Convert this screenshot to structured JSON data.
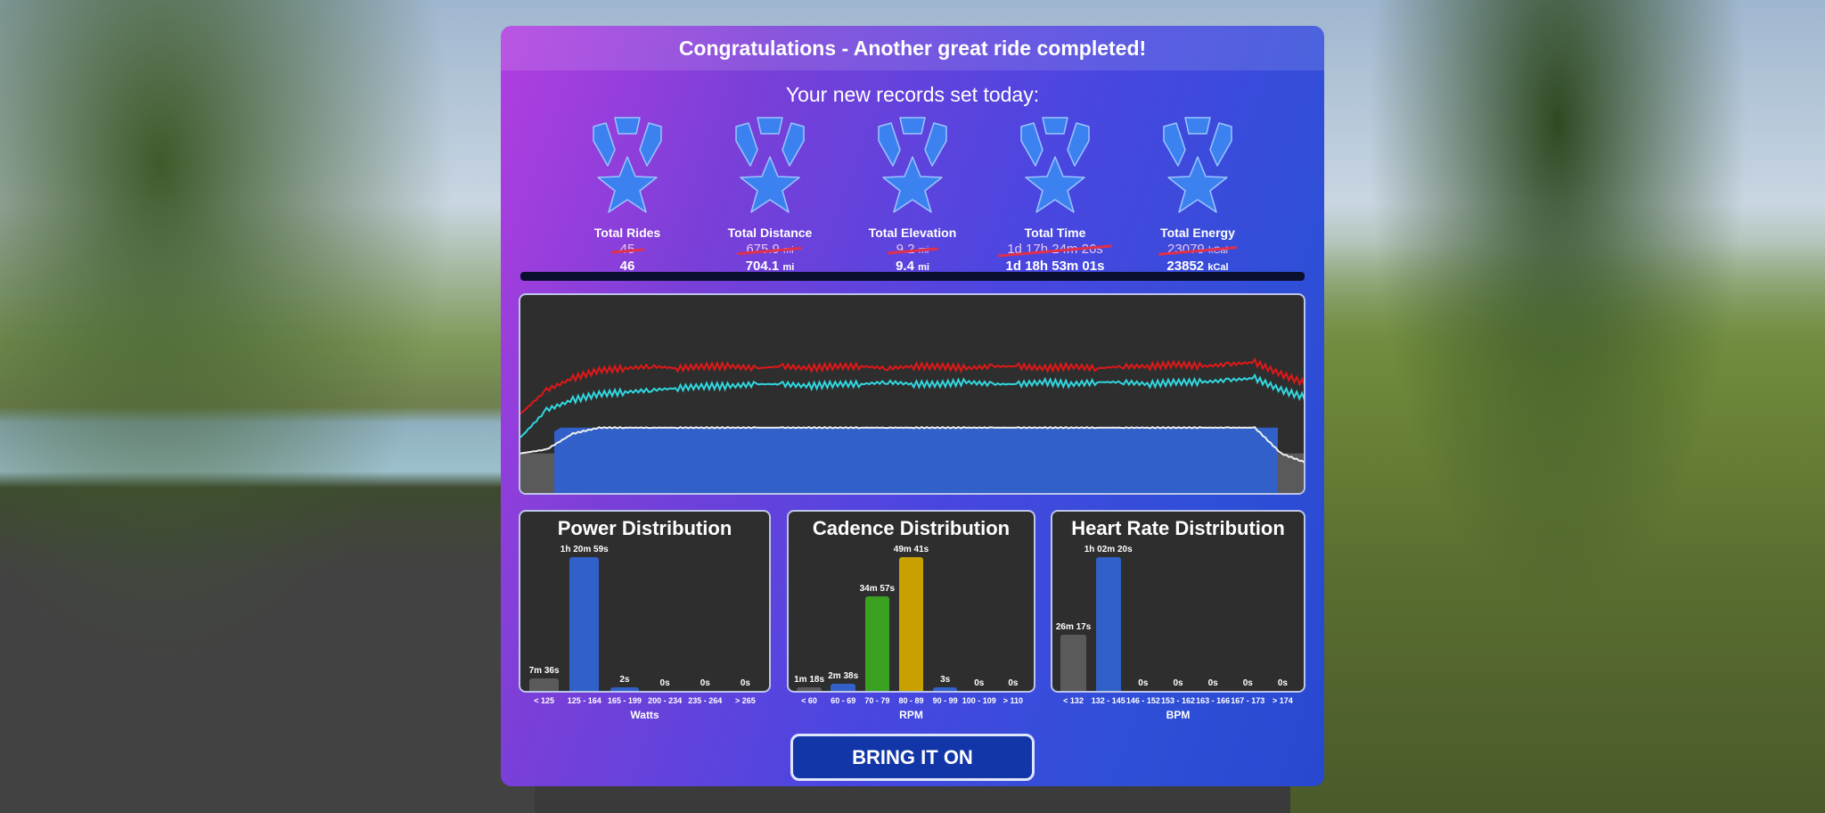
{
  "header": {
    "title": "Congratulations - Another great ride completed!"
  },
  "records": {
    "subtitle": "Your new records set today:",
    "items": [
      {
        "label": "Total Rides",
        "old": "45",
        "old_unit": "",
        "new": "46",
        "new_unit": ""
      },
      {
        "label": "Total Distance",
        "old": "675.9",
        "old_unit": "mi",
        "new": "704.1",
        "new_unit": "mi"
      },
      {
        "label": "Total Elevation",
        "old": "9.2",
        "old_unit": "mi",
        "new": "9.4",
        "new_unit": "mi"
      },
      {
        "label": "Total Time",
        "old": "1d 17h 24m 26s",
        "old_unit": "",
        "new": "1d 18h 53m 01s",
        "new_unit": ""
      },
      {
        "label": "Total Energy",
        "old": "23079",
        "old_unit": "kCal",
        "new": "23852",
        "new_unit": "kCal"
      }
    ]
  },
  "colors": {
    "medal": "#3b82f0",
    "red_line": "#e01818",
    "cyan_line": "#30d8e0",
    "white_line": "#f0f0f0",
    "area_fill": "#3060c8",
    "gray": "#5a5a5a",
    "green": "#3aa020",
    "yellow": "#c8a000"
  },
  "chart_data": [
    {
      "type": "line",
      "series": [
        {
          "color": "#e01818",
          "values": [
            40,
            52,
            58,
            62,
            63,
            64,
            63,
            64,
            64,
            63,
            64,
            63,
            64,
            64,
            63,
            64,
            64,
            63,
            64,
            64,
            63,
            64,
            63,
            64,
            64,
            65,
            64,
            65,
            66,
            60,
            55
          ]
        },
        {
          "color": "#30d8e0",
          "values": [
            28,
            42,
            47,
            50,
            51,
            52,
            53,
            54,
            54,
            55,
            55,
            54,
            55,
            55,
            56,
            55,
            55,
            56,
            55,
            55,
            56,
            55,
            56,
            56,
            55,
            56,
            56,
            57,
            58,
            52,
            48
          ]
        },
        {
          "color": "#f0f0f0",
          "values": [
            20,
            22,
            30,
            33,
            33,
            33,
            33,
            33,
            33,
            33,
            33,
            33,
            33,
            33,
            33,
            33,
            33,
            33,
            33,
            33,
            33,
            33,
            33,
            33,
            33,
            33,
            33,
            33,
            33,
            20,
            15
          ]
        }
      ]
    },
    {
      "type": "bar",
      "title": "Power Distribution",
      "xlabel": "Watts",
      "categories": [
        "< 125",
        "125 - 164",
        "165 - 199",
        "200 - 234",
        "235 - 264",
        "> 265"
      ],
      "values_seconds": [
        456,
        4859,
        2,
        0,
        0,
        0
      ],
      "labels": [
        "7m 36s",
        "1h 20m 59s",
        "2s",
        "0s",
        "0s",
        "0s"
      ],
      "colors": [
        "#5a5a5a",
        "#3060c8",
        "#3060c8",
        "#3060c8",
        "#3060c8",
        "#3060c8"
      ]
    },
    {
      "type": "bar",
      "title": "Cadence Distribution",
      "xlabel": "RPM",
      "categories": [
        "< 60",
        "60 - 69",
        "70 - 79",
        "80 - 89",
        "90 - 99",
        "100 - 109",
        "> 110"
      ],
      "values_seconds": [
        78,
        158,
        2097,
        2981,
        3,
        0,
        0
      ],
      "labels": [
        "1m 18s",
        "2m 38s",
        "34m 57s",
        "49m 41s",
        "3s",
        "0s",
        "0s"
      ],
      "colors": [
        "#5a5a5a",
        "#3060c8",
        "#3aa020",
        "#c8a000",
        "#3060c8",
        "#3060c8",
        "#3060c8"
      ]
    },
    {
      "type": "bar",
      "title": "Heart Rate Distribution",
      "xlabel": "BPM",
      "categories": [
        "< 132",
        "132 - 145",
        "146 - 152",
        "153 - 162",
        "163 - 166",
        "167 - 173",
        "> 174"
      ],
      "values_seconds": [
        1577,
        3740,
        0,
        0,
        0,
        0,
        0
      ],
      "labels": [
        "26m 17s",
        "1h 02m 20s",
        "0s",
        "0s",
        "0s",
        "0s",
        "0s"
      ],
      "colors": [
        "#5a5a5a",
        "#3060c8",
        "#3060c8",
        "#3060c8",
        "#3060c8",
        "#3060c8",
        "#3060c8"
      ]
    }
  ],
  "button": {
    "label": "BRING IT ON"
  }
}
